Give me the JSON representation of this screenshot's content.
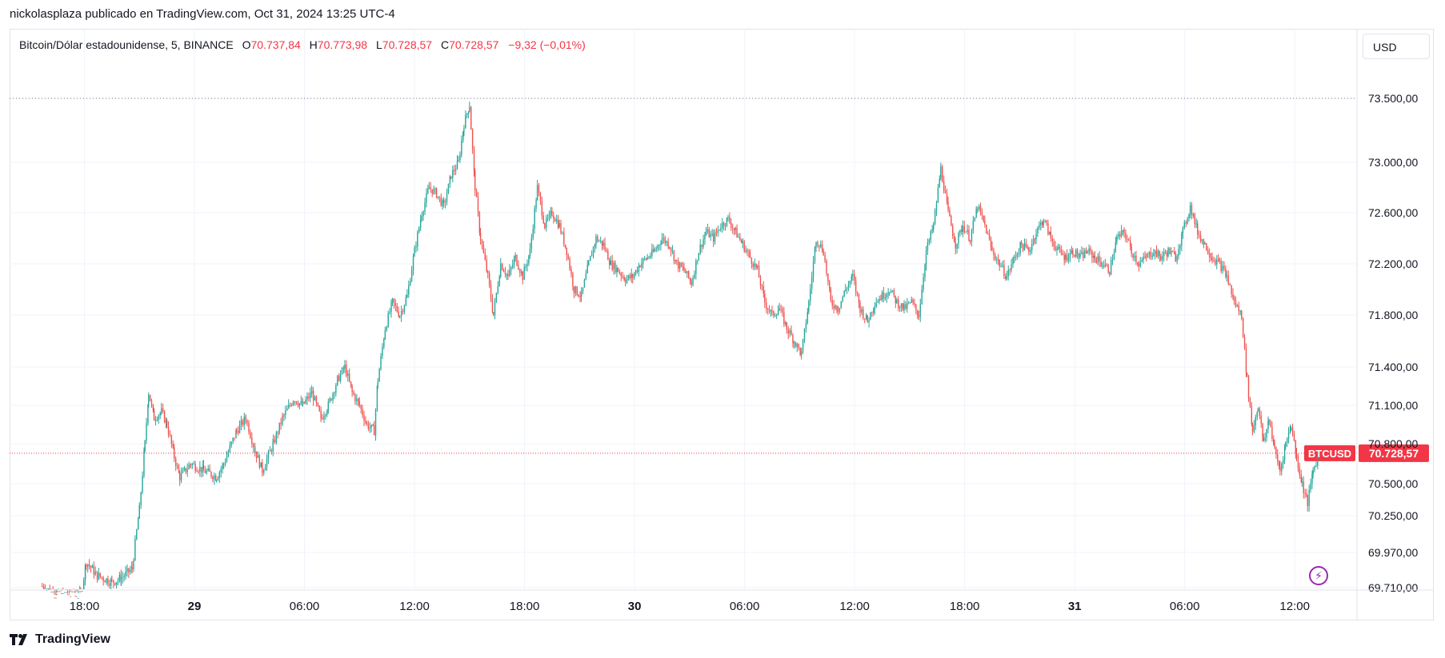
{
  "header": {
    "publisher_line": "nickolasplaza publicado en TradingView.com, Oct 31, 2024 13:25 UTC-4"
  },
  "legend": {
    "symbol": "Bitcoin/Dólar estadounidense, 5, BINANCE",
    "open_key": "O",
    "open": "70.737,84",
    "high_key": "H",
    "high": "70.773,98",
    "low_key": "L",
    "low": "70.728,57",
    "close_key": "C",
    "close": "70.728,57",
    "change": "−9,32 (−0,01%)"
  },
  "currency_button": "USD",
  "footer": {
    "brand": "TradingView"
  },
  "colors": {
    "up": "#26a69a",
    "down": "#ef5350",
    "grid": "#f0f3fa",
    "price_line": "#f23645",
    "text": "#131722"
  },
  "icons": {
    "brand": "tradingview-logo-icon",
    "bolt": "lightning-icon"
  },
  "chart_data": {
    "type": "candlestick",
    "ticker": "BTCUSD",
    "last_price": 70728.57,
    "last_price_label": "70.728,57",
    "y_ticks": [
      {
        "value": 73500,
        "label": "73.500,00"
      },
      {
        "value": 73000,
        "label": "73.000,00"
      },
      {
        "value": 72600,
        "label": "72.600,00"
      },
      {
        "value": 72200,
        "label": "72.200,00"
      },
      {
        "value": 71800,
        "label": "71.800,00"
      },
      {
        "value": 71400,
        "label": "71.400,00"
      },
      {
        "value": 71100,
        "label": "71.100,00"
      },
      {
        "value": 70800,
        "label": "70.800,00"
      },
      {
        "value": 70500,
        "label": "70.500,00"
      },
      {
        "value": 70250,
        "label": "70.250,00"
      },
      {
        "value": 69970,
        "label": "69.970,00"
      },
      {
        "value": 69710,
        "label": "69.710,00"
      }
    ],
    "x_ticks": [
      {
        "hours": -6,
        "label": "18:00",
        "bold": false
      },
      {
        "hours": 0,
        "label": "29",
        "bold": true
      },
      {
        "hours": 6,
        "label": "06:00",
        "bold": false
      },
      {
        "hours": 12,
        "label": "12:00",
        "bold": false
      },
      {
        "hours": 18,
        "label": "18:00",
        "bold": false
      },
      {
        "hours": 24,
        "label": "30",
        "bold": true
      },
      {
        "hours": 30,
        "label": "06:00",
        "bold": false
      },
      {
        "hours": 36,
        "label": "12:00",
        "bold": false
      },
      {
        "hours": 42,
        "label": "18:00",
        "bold": false
      },
      {
        "hours": 48,
        "label": "31",
        "bold": true
      },
      {
        "hours": 54,
        "label": "06:00",
        "bold": false
      },
      {
        "hours": 60,
        "label": "12:00",
        "bold": false
      }
    ],
    "x_range_hours": [
      -8.6,
      64.9
    ],
    "dotted_high_level": 73500,
    "candle_interval_hours": 0.0833,
    "close_path": [
      [
        -8.3,
        69720
      ],
      [
        -7.5,
        69650
      ],
      [
        -6.2,
        69650
      ],
      [
        -5.9,
        69900
      ],
      [
        -5.3,
        69800
      ],
      [
        -4.5,
        69750
      ],
      [
        -4.0,
        69780
      ],
      [
        -3.4,
        69850
      ],
      [
        -3.0,
        70300
      ],
      [
        -2.7,
        70800
      ],
      [
        -2.5,
        71200
      ],
      [
        -2.2,
        71000
      ],
      [
        -1.8,
        71050
      ],
      [
        -1.5,
        70950
      ],
      [
        -1.1,
        70700
      ],
      [
        -0.8,
        70550
      ],
      [
        -0.2,
        70650
      ],
      [
        0.5,
        70600
      ],
      [
        1.2,
        70550
      ],
      [
        1.6,
        70650
      ],
      [
        2.3,
        70900
      ],
      [
        2.8,
        71000
      ],
      [
        3.3,
        70750
      ],
      [
        3.7,
        70600
      ],
      [
        4.3,
        70800
      ],
      [
        4.8,
        71000
      ],
      [
        5.4,
        71150
      ],
      [
        5.9,
        71100
      ],
      [
        6.4,
        71200
      ],
      [
        6.9,
        71000
      ],
      [
        7.3,
        71100
      ],
      [
        7.8,
        71300
      ],
      [
        8.2,
        71400
      ],
      [
        8.6,
        71200
      ],
      [
        9.0,
        71100
      ],
      [
        9.4,
        70950
      ],
      [
        9.8,
        70900
      ],
      [
        10.0,
        71300
      ],
      [
        10.4,
        71700
      ],
      [
        10.8,
        71900
      ],
      [
        11.2,
        71800
      ],
      [
        11.6,
        71950
      ],
      [
        12.0,
        72300
      ],
      [
        12.4,
        72600
      ],
      [
        12.8,
        72800
      ],
      [
        13.2,
        72750
      ],
      [
        13.6,
        72650
      ],
      [
        14.0,
        72900
      ],
      [
        14.4,
        73000
      ],
      [
        14.7,
        73300
      ],
      [
        15.0,
        73450
      ],
      [
        15.3,
        72800
      ],
      [
        15.6,
        72400
      ],
      [
        16.0,
        72100
      ],
      [
        16.3,
        71800
      ],
      [
        16.7,
        72200
      ],
      [
        17.1,
        72100
      ],
      [
        17.5,
        72250
      ],
      [
        17.9,
        72100
      ],
      [
        18.3,
        72300
      ],
      [
        18.7,
        72800
      ],
      [
        19.1,
        72500
      ],
      [
        19.5,
        72600
      ],
      [
        19.9,
        72500
      ],
      [
        20.3,
        72300
      ],
      [
        20.7,
        72000
      ],
      [
        21.1,
        71950
      ],
      [
        21.5,
        72200
      ],
      [
        21.9,
        72400
      ],
      [
        22.3,
        72350
      ],
      [
        22.7,
        72200
      ],
      [
        23.1,
        72150
      ],
      [
        23.5,
        72080
      ],
      [
        23.9,
        72100
      ],
      [
        24.3,
        72200
      ],
      [
        24.7,
        72250
      ],
      [
        25.1,
        72300
      ],
      [
        25.5,
        72400
      ],
      [
        25.9,
        72350
      ],
      [
        26.3,
        72200
      ],
      [
        26.7,
        72150
      ],
      [
        27.1,
        72050
      ],
      [
        27.5,
        72300
      ],
      [
        27.9,
        72450
      ],
      [
        28.3,
        72400
      ],
      [
        28.7,
        72500
      ],
      [
        29.1,
        72550
      ],
      [
        29.5,
        72450
      ],
      [
        29.9,
        72350
      ],
      [
        30.3,
        72250
      ],
      [
        30.7,
        72150
      ],
      [
        31.1,
        71900
      ],
      [
        31.5,
        71800
      ],
      [
        31.9,
        71850
      ],
      [
        32.3,
        71700
      ],
      [
        32.7,
        71600
      ],
      [
        33.1,
        71500
      ],
      [
        33.5,
        71900
      ],
      [
        33.9,
        72400
      ],
      [
        34.3,
        72300
      ],
      [
        34.7,
        71900
      ],
      [
        35.1,
        71850
      ],
      [
        35.5,
        72000
      ],
      [
        35.9,
        72100
      ],
      [
        36.3,
        71850
      ],
      [
        36.7,
        71750
      ],
      [
        37.1,
        71900
      ],
      [
        37.5,
        71950
      ],
      [
        37.9,
        72000
      ],
      [
        38.3,
        71900
      ],
      [
        38.7,
        71850
      ],
      [
        39.1,
        71900
      ],
      [
        39.5,
        71800
      ],
      [
        39.9,
        72300
      ],
      [
        40.3,
        72500
      ],
      [
        40.7,
        72950
      ],
      [
        41.1,
        72600
      ],
      [
        41.5,
        72350
      ],
      [
        41.9,
        72500
      ],
      [
        42.3,
        72400
      ],
      [
        42.7,
        72650
      ],
      [
        43.1,
        72500
      ],
      [
        43.5,
        72300
      ],
      [
        43.9,
        72200
      ],
      [
        44.3,
        72100
      ],
      [
        44.7,
        72250
      ],
      [
        45.1,
        72350
      ],
      [
        45.5,
        72300
      ],
      [
        45.9,
        72450
      ],
      [
        46.3,
        72550
      ],
      [
        46.7,
        72400
      ],
      [
        47.1,
        72300
      ],
      [
        47.5,
        72250
      ],
      [
        47.9,
        72300
      ],
      [
        48.3,
        72250
      ],
      [
        48.7,
        72300
      ],
      [
        49.1,
        72250
      ],
      [
        49.5,
        72200
      ],
      [
        49.9,
        72150
      ],
      [
        50.3,
        72400
      ],
      [
        50.7,
        72450
      ],
      [
        51.1,
        72300
      ],
      [
        51.5,
        72200
      ],
      [
        51.9,
        72250
      ],
      [
        52.3,
        72300
      ],
      [
        52.7,
        72250
      ],
      [
        53.1,
        72300
      ],
      [
        53.5,
        72250
      ],
      [
        53.9,
        72450
      ],
      [
        54.3,
        72650
      ],
      [
        54.7,
        72450
      ],
      [
        55.1,
        72350
      ],
      [
        55.5,
        72250
      ],
      [
        55.9,
        72200
      ],
      [
        56.3,
        72100
      ],
      [
        56.7,
        71900
      ],
      [
        57.1,
        71800
      ],
      [
        57.4,
        71300
      ],
      [
        57.7,
        70900
      ],
      [
        58.0,
        71100
      ],
      [
        58.3,
        70800
      ],
      [
        58.6,
        71000
      ],
      [
        58.9,
        70750
      ],
      [
        59.2,
        70600
      ],
      [
        59.5,
        70800
      ],
      [
        59.8,
        70950
      ],
      [
        60.1,
        70700
      ],
      [
        60.4,
        70500
      ],
      [
        60.7,
        70350
      ],
      [
        61.0,
        70600
      ],
      [
        61.3,
        70720
      ]
    ]
  }
}
